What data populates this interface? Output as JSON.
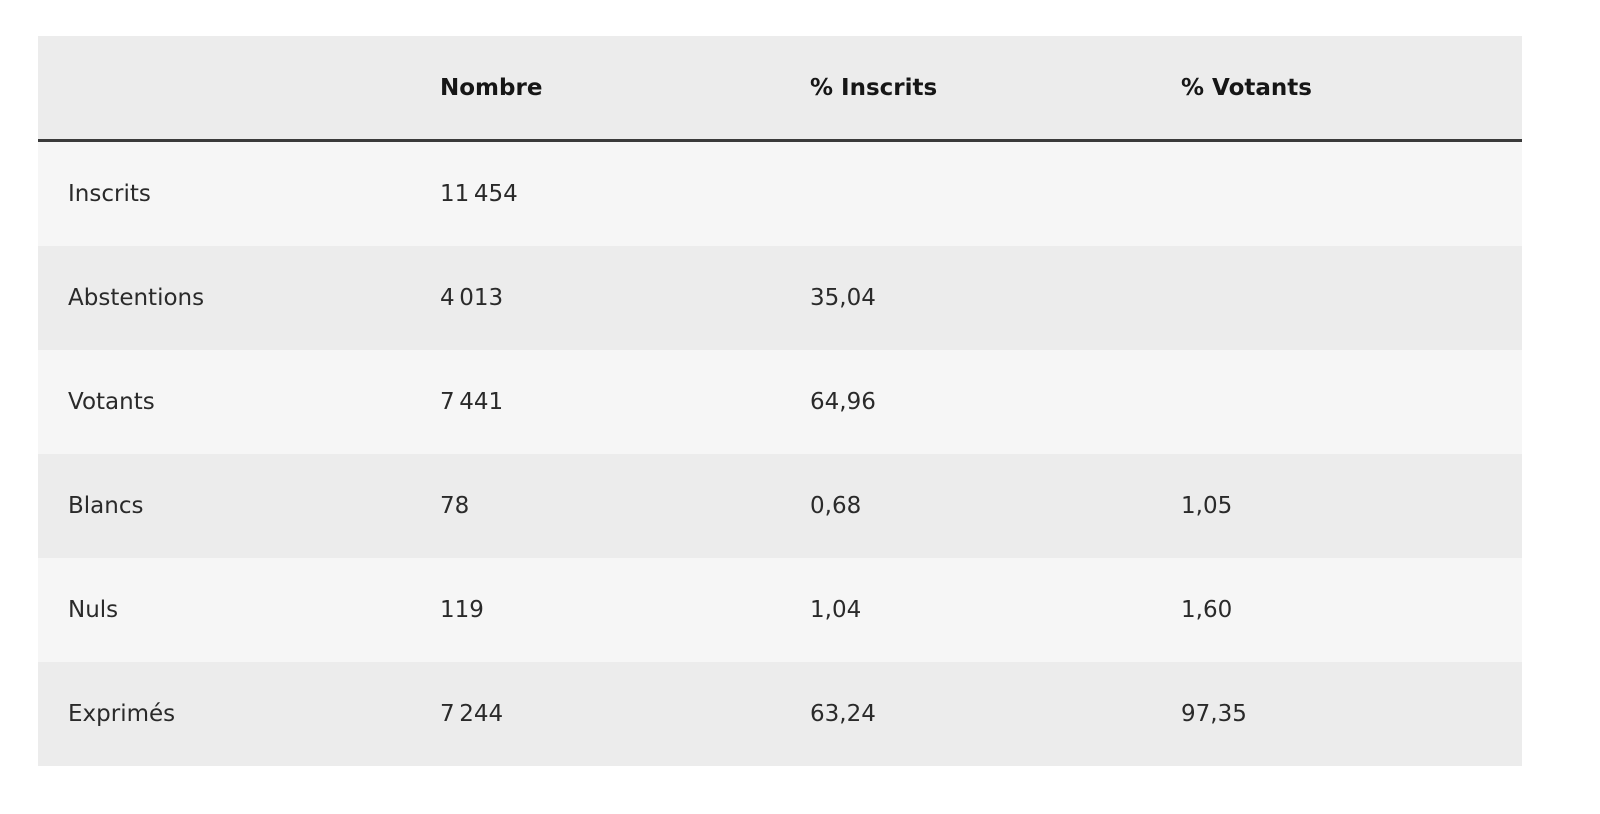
{
  "table": {
    "header": [
      "Nombre",
      "% Inscrits",
      "% Votants"
    ],
    "rows": [
      [
        "Inscrits",
        "11 454"
      ],
      [
        "Abstentions",
        "4 013",
        "35,04"
      ],
      [
        "Votants",
        "7 441",
        "64,96"
      ],
      [
        "Blancs",
        "78",
        "0,68",
        "1,05"
      ],
      [
        "Nuls",
        "119",
        "1,04",
        "1,60"
      ],
      [
        "Exprimés",
        "7 244",
        "63,24",
        "97,35"
      ]
    ]
  }
}
